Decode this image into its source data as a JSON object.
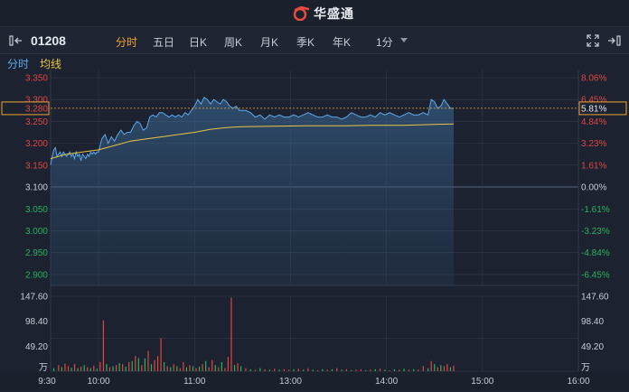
{
  "brand": {
    "name": "华盛通"
  },
  "toolbar": {
    "code": "01208",
    "periods": [
      "分时",
      "五日",
      "日K",
      "周K",
      "月K",
      "季K",
      "年K",
      "1分"
    ],
    "active_period": "分时"
  },
  "tabs": {
    "minute": "分时",
    "avg": "均线"
  },
  "colors": {
    "price_line": "#5aa9ea",
    "avg_line": "#e8c547",
    "up": "#e0463f",
    "down": "#27b35c",
    "active": "#f0a431",
    "grid": "#323a4a"
  },
  "chart_data": {
    "type": "line",
    "price_labels": [
      "3.350",
      "3.300",
      "3.250",
      "3.200",
      "3.150",
      "3.100",
      "3.050",
      "3.000",
      "2.950",
      "2.900"
    ],
    "pct_labels": [
      "8.06%",
      "6.45%",
      "4.84%",
      "3.23%",
      "1.61%",
      "0.00%",
      "-1.61%",
      "-3.23%",
      "-4.84%",
      "-6.45%"
    ],
    "price_range": [
      2.875,
      3.35
    ],
    "prev_close": 3.1,
    "current_price": "3.280",
    "current_pct": "5.81%",
    "time_labels": [
      "9:30",
      "10:00",
      "11:00",
      "13:00",
      "14:00",
      "15:00",
      "16:00"
    ],
    "volume_labels": [
      "147.60",
      "98.40",
      "49.20"
    ],
    "volume_unit": "万",
    "volume_max": 147.6,
    "price_series": [
      [
        0,
        3.15
      ],
      [
        1,
        3.17
      ],
      [
        2,
        3.185
      ],
      [
        3,
        3.19
      ],
      [
        4,
        3.17
      ],
      [
        5,
        3.175
      ],
      [
        6,
        3.18
      ],
      [
        7,
        3.17
      ],
      [
        8,
        3.18
      ],
      [
        9,
        3.175
      ],
      [
        10,
        3.17
      ],
      [
        11,
        3.175
      ],
      [
        12,
        3.18
      ],
      [
        13,
        3.17
      ],
      [
        14,
        3.175
      ],
      [
        15,
        3.165
      ],
      [
        16,
        3.18
      ],
      [
        17,
        3.17
      ],
      [
        18,
        3.175
      ],
      [
        19,
        3.16
      ],
      [
        20,
        3.175
      ],
      [
        21,
        3.17
      ],
      [
        22,
        3.165
      ],
      [
        23,
        3.175
      ],
      [
        24,
        3.17
      ],
      [
        25,
        3.18
      ],
      [
        26,
        3.175
      ],
      [
        27,
        3.18
      ],
      [
        28,
        3.175
      ],
      [
        29,
        3.18
      ],
      [
        30,
        3.18
      ],
      [
        32,
        3.21
      ],
      [
        34,
        3.22
      ],
      [
        36,
        3.2
      ],
      [
        38,
        3.215
      ],
      [
        40,
        3.205
      ],
      [
        42,
        3.22
      ],
      [
        44,
        3.23
      ],
      [
        46,
        3.22
      ],
      [
        48,
        3.225
      ],
      [
        50,
        3.225
      ],
      [
        52,
        3.24
      ],
      [
        54,
        3.25
      ],
      [
        56,
        3.245
      ],
      [
        58,
        3.23
      ],
      [
        60,
        3.235
      ],
      [
        62,
        3.26
      ],
      [
        64,
        3.265
      ],
      [
        66,
        3.26
      ],
      [
        68,
        3.27
      ],
      [
        70,
        3.27
      ],
      [
        72,
        3.265
      ],
      [
        74,
        3.26
      ],
      [
        76,
        3.265
      ],
      [
        78,
        3.26
      ],
      [
        80,
        3.265
      ],
      [
        82,
        3.26
      ],
      [
        84,
        3.27
      ],
      [
        86,
        3.265
      ],
      [
        88,
        3.275
      ],
      [
        90,
        3.285
      ],
      [
        92,
        3.3
      ],
      [
        94,
        3.29
      ],
      [
        96,
        3.305
      ],
      [
        98,
        3.3
      ],
      [
        100,
        3.29
      ],
      [
        102,
        3.3
      ],
      [
        104,
        3.295
      ],
      [
        106,
        3.29
      ],
      [
        108,
        3.3
      ],
      [
        110,
        3.295
      ],
      [
        112,
        3.285
      ],
      [
        114,
        3.28
      ],
      [
        116,
        3.285
      ],
      [
        118,
        3.275
      ],
      [
        120,
        3.275
      ],
      [
        122,
        3.275
      ],
      [
        125,
        3.27
      ],
      [
        128,
        3.26
      ],
      [
        131,
        3.265
      ],
      [
        134,
        3.255
      ],
      [
        137,
        3.265
      ],
      [
        140,
        3.26
      ],
      [
        143,
        3.265
      ],
      [
        146,
        3.26
      ],
      [
        149,
        3.26
      ],
      [
        152,
        3.265
      ],
      [
        155,
        3.26
      ],
      [
        158,
        3.265
      ],
      [
        161,
        3.27
      ],
      [
        164,
        3.265
      ],
      [
        167,
        3.26
      ],
      [
        170,
        3.26
      ],
      [
        173,
        3.265
      ],
      [
        176,
        3.26
      ],
      [
        179,
        3.26
      ],
      [
        182,
        3.255
      ],
      [
        185,
        3.26
      ],
      [
        188,
        3.27
      ],
      [
        191,
        3.265
      ],
      [
        194,
        3.26
      ],
      [
        197,
        3.26
      ],
      [
        200,
        3.265
      ],
      [
        203,
        3.26
      ],
      [
        206,
        3.27
      ],
      [
        209,
        3.265
      ],
      [
        212,
        3.27
      ],
      [
        215,
        3.265
      ],
      [
        218,
        3.26
      ],
      [
        221,
        3.265
      ],
      [
        224,
        3.27
      ],
      [
        227,
        3.265
      ],
      [
        230,
        3.265
      ],
      [
        233,
        3.27
      ],
      [
        236,
        3.265
      ],
      [
        238,
        3.3
      ],
      [
        240,
        3.295
      ],
      [
        242,
        3.28
      ],
      [
        244,
        3.285
      ],
      [
        246,
        3.3
      ],
      [
        248,
        3.29
      ],
      [
        250,
        3.28
      ],
      [
        252,
        3.28
      ]
    ],
    "avg_series": [
      [
        0,
        3.165
      ],
      [
        10,
        3.175
      ],
      [
        20,
        3.18
      ],
      [
        30,
        3.185
      ],
      [
        40,
        3.195
      ],
      [
        50,
        3.205
      ],
      [
        60,
        3.21
      ],
      [
        70,
        3.215
      ],
      [
        80,
        3.22
      ],
      [
        90,
        3.225
      ],
      [
        100,
        3.232
      ],
      [
        110,
        3.236
      ],
      [
        120,
        3.238
      ],
      [
        140,
        3.239
      ],
      [
        160,
        3.24
      ],
      [
        180,
        3.24
      ],
      [
        200,
        3.241
      ],
      [
        220,
        3.241
      ],
      [
        240,
        3.243
      ],
      [
        252,
        3.244
      ]
    ],
    "volumes": [
      [
        2,
        6,
        "down"
      ],
      [
        5,
        12,
        "up"
      ],
      [
        7,
        8,
        "down"
      ],
      [
        9,
        15,
        "up"
      ],
      [
        11,
        10,
        "up"
      ],
      [
        13,
        7,
        "down"
      ],
      [
        15,
        14,
        "up"
      ],
      [
        17,
        6,
        "down"
      ],
      [
        19,
        9,
        "up"
      ],
      [
        21,
        12,
        "down"
      ],
      [
        23,
        8,
        "up"
      ],
      [
        25,
        6,
        "down"
      ],
      [
        27,
        11,
        "up"
      ],
      [
        29,
        5,
        "down"
      ],
      [
        31,
        18,
        "up"
      ],
      [
        33,
        100,
        "up"
      ],
      [
        35,
        14,
        "down"
      ],
      [
        37,
        8,
        "up"
      ],
      [
        39,
        10,
        "down"
      ],
      [
        41,
        12,
        "up"
      ],
      [
        43,
        16,
        "down"
      ],
      [
        45,
        14,
        "up"
      ],
      [
        47,
        9,
        "down"
      ],
      [
        49,
        18,
        "up"
      ],
      [
        51,
        20,
        "down"
      ],
      [
        53,
        30,
        "up"
      ],
      [
        55,
        26,
        "down"
      ],
      [
        57,
        12,
        "up"
      ],
      [
        59,
        25,
        "down"
      ],
      [
        61,
        40,
        "up"
      ],
      [
        63,
        14,
        "down"
      ],
      [
        65,
        22,
        "up"
      ],
      [
        67,
        30,
        "up"
      ],
      [
        69,
        65,
        "up"
      ],
      [
        71,
        18,
        "down"
      ],
      [
        73,
        10,
        "up"
      ],
      [
        75,
        8,
        "down"
      ],
      [
        77,
        14,
        "up"
      ],
      [
        79,
        10,
        "down"
      ],
      [
        81,
        6,
        "up"
      ],
      [
        83,
        18,
        "up"
      ],
      [
        85,
        8,
        "down"
      ],
      [
        87,
        12,
        "up"
      ],
      [
        89,
        10,
        "down"
      ],
      [
        91,
        6,
        "up"
      ],
      [
        93,
        9,
        "down"
      ],
      [
        95,
        14,
        "up"
      ],
      [
        97,
        20,
        "down"
      ],
      [
        99,
        8,
        "up"
      ],
      [
        101,
        22,
        "up"
      ],
      [
        103,
        12,
        "down"
      ],
      [
        105,
        8,
        "up"
      ],
      [
        107,
        18,
        "down"
      ],
      [
        109,
        6,
        "up"
      ],
      [
        111,
        28,
        "up"
      ],
      [
        113,
        145,
        "up"
      ],
      [
        115,
        12,
        "down"
      ],
      [
        117,
        16,
        "up"
      ],
      [
        119,
        10,
        "down"
      ],
      [
        122,
        6,
        "up"
      ],
      [
        125,
        4,
        "down"
      ],
      [
        128,
        3,
        "up"
      ],
      [
        131,
        6,
        "down"
      ],
      [
        134,
        4,
        "up"
      ],
      [
        137,
        3,
        "down"
      ],
      [
        140,
        5,
        "up"
      ],
      [
        143,
        3,
        "down"
      ],
      [
        146,
        4,
        "up"
      ],
      [
        149,
        3,
        "up"
      ],
      [
        152,
        4,
        "down"
      ],
      [
        155,
        5,
        "up"
      ],
      [
        158,
        3,
        "down"
      ],
      [
        161,
        6,
        "up"
      ],
      [
        164,
        3,
        "down"
      ],
      [
        167,
        2,
        "up"
      ],
      [
        170,
        4,
        "down"
      ],
      [
        173,
        3,
        "up"
      ],
      [
        176,
        4,
        "down"
      ],
      [
        179,
        6,
        "up"
      ],
      [
        182,
        3,
        "down"
      ],
      [
        185,
        4,
        "up"
      ],
      [
        188,
        2,
        "down"
      ],
      [
        191,
        3,
        "up"
      ],
      [
        194,
        4,
        "up"
      ],
      [
        197,
        2,
        "down"
      ],
      [
        200,
        3,
        "up"
      ],
      [
        203,
        4,
        "down"
      ],
      [
        206,
        5,
        "up"
      ],
      [
        209,
        3,
        "down"
      ],
      [
        212,
        2,
        "up"
      ],
      [
        215,
        4,
        "down"
      ],
      [
        218,
        3,
        "up"
      ],
      [
        221,
        5,
        "down"
      ],
      [
        224,
        3,
        "up"
      ],
      [
        227,
        4,
        "down"
      ],
      [
        230,
        3,
        "up"
      ],
      [
        233,
        10,
        "up"
      ],
      [
        236,
        6,
        "down"
      ],
      [
        238,
        20,
        "up"
      ],
      [
        240,
        14,
        "down"
      ],
      [
        242,
        8,
        "up"
      ],
      [
        244,
        12,
        "down"
      ],
      [
        246,
        10,
        "up"
      ],
      [
        248,
        14,
        "up"
      ],
      [
        250,
        8,
        "down"
      ],
      [
        252,
        11,
        "up"
      ]
    ]
  }
}
